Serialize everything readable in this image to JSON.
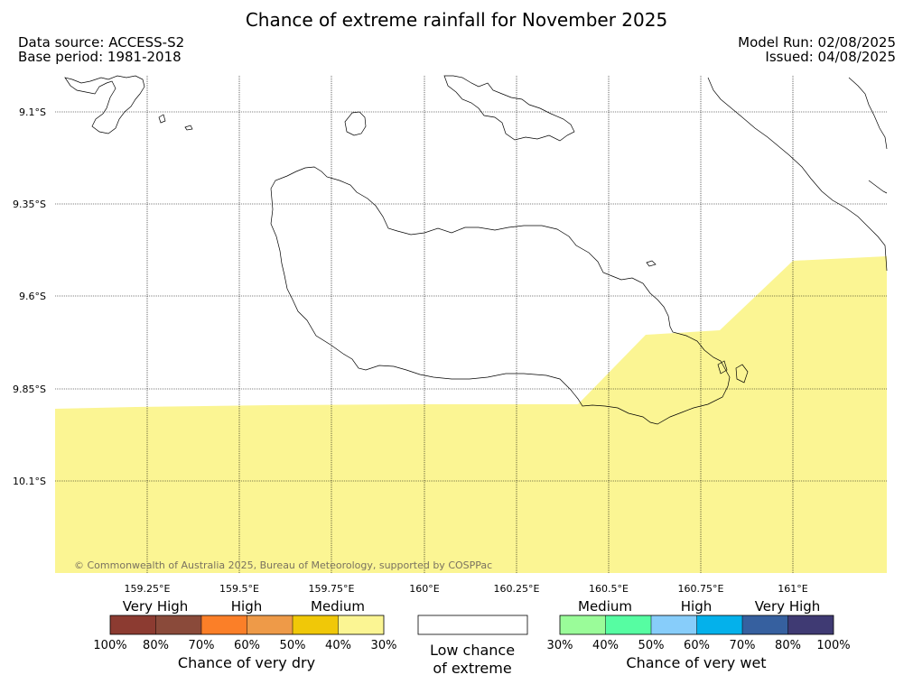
{
  "title": "Chance of extreme rainfall for November 2025",
  "header": {
    "data_source": "Data source: ACCESS-S2",
    "base_period": "Base period: 1981-2018",
    "model_run": "Model Run: 02/08/2025",
    "issued": "Issued: 04/08/2025"
  },
  "map": {
    "lat_labels": [
      "9.1°S",
      "9.35°S",
      "9.6°S",
      "9.85°S",
      "10.1°S"
    ],
    "lon_labels": [
      "159.25°E",
      "159.5°E",
      "159.75°E",
      "160°E",
      "160.25°E",
      "160.5°E",
      "160.75°E",
      "161°E"
    ],
    "shaded_category": "Chance of very dry 30%–40%",
    "shade_color": "#fbf593",
    "copyright": "© Commonwealth of Australia 2025, Bureau of Meteorology, supported by COSPPac"
  },
  "legend": {
    "dry": {
      "levels": [
        "Very High",
        "High",
        "Medium"
      ],
      "colors": [
        "#8c3b31",
        "#8a4a3a",
        "#fb7f28",
        "#ee9a48",
        "#f0c808",
        "#fbf593"
      ],
      "ticks": [
        "100%",
        "80%",
        "70%",
        "60%",
        "50%",
        "40%",
        "30%"
      ],
      "label": "Chance of very dry"
    },
    "neutral": {
      "color": "#ffffff",
      "label_line1": "Low chance",
      "label_line2": "of extreme"
    },
    "wet": {
      "levels": [
        "Medium",
        "High",
        "Very High"
      ],
      "colors": [
        "#9afc99",
        "#56fda2",
        "#87cdfa",
        "#04b1eb",
        "#36609f",
        "#3f3a73"
      ],
      "ticks": [
        "30%",
        "40%",
        "50%",
        "60%",
        "70%",
        "80%",
        "100%"
      ],
      "label": "Chance of very wet"
    }
  }
}
